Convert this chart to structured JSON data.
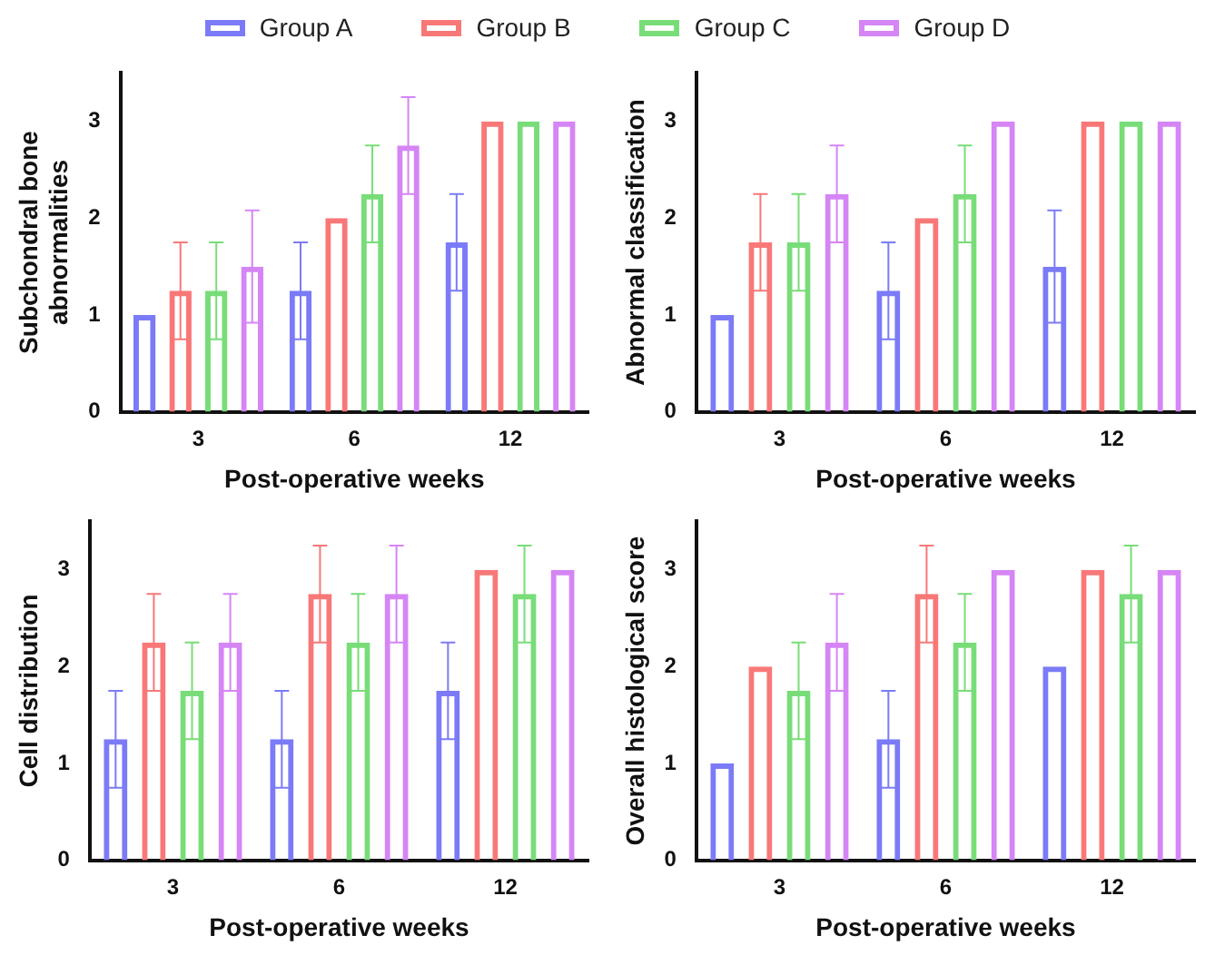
{
  "chart_data": [
    {
      "type": "bar",
      "ylabel": "Subchondral bone abnormalities",
      "xlabel": "Post-operative weeks",
      "categories": [
        "3",
        "6",
        "12"
      ],
      "ylim": [
        0,
        3.5
      ],
      "yticks": [
        0,
        1,
        2,
        3
      ],
      "grid": false,
      "legend": "top",
      "series": [
        {
          "name": "Group A",
          "color": "#7b7bf7",
          "values": [
            1,
            1.25,
            1.75
          ],
          "errors": [
            null,
            0.5,
            0.5
          ]
        },
        {
          "name": "Group B",
          "color": "#f87878",
          "values": [
            1.25,
            2,
            3
          ],
          "errors": [
            0.5,
            null,
            null
          ]
        },
        {
          "name": "Group C",
          "color": "#78dd78",
          "values": [
            1.25,
            2.25,
            3
          ],
          "errors": [
            0.5,
            0.5,
            null
          ]
        },
        {
          "name": "Group D",
          "color": "#d585f5",
          "values": [
            1.5,
            2.75,
            3
          ],
          "errors": [
            0.58,
            0.5,
            null
          ]
        }
      ]
    },
    {
      "type": "bar",
      "ylabel": "Abnormal classification",
      "xlabel": "Post-operative weeks",
      "categories": [
        "3",
        "6",
        "12"
      ],
      "ylim": [
        0,
        3.5
      ],
      "yticks": [
        0,
        1,
        2,
        3
      ],
      "grid": false,
      "series": [
        {
          "color": "#7b7bf7",
          "values": [
            1,
            1.25,
            1.5
          ],
          "errors": [
            null,
            0.5,
            0.58
          ]
        },
        {
          "color": "#f87878",
          "values": [
            1.75,
            2,
            3
          ],
          "errors": [
            0.5,
            null,
            null
          ]
        },
        {
          "color": "#78dd78",
          "values": [
            1.75,
            2.25,
            3
          ],
          "errors": [
            0.5,
            0.5,
            null
          ]
        },
        {
          "color": "#d585f5",
          "values": [
            2.25,
            3,
            3
          ],
          "errors": [
            0.5,
            null,
            null
          ]
        }
      ]
    },
    {
      "type": "bar",
      "ylabel": "Cell distribution",
      "xlabel": "Post-operative weeks",
      "categories": [
        "3",
        "6",
        "12"
      ],
      "ylim": [
        0,
        3.5
      ],
      "yticks": [
        0,
        1,
        2,
        3
      ],
      "grid": false,
      "series": [
        {
          "color": "#7b7bf7",
          "values": [
            1.25,
            1.25,
            1.75
          ],
          "errors": [
            0.5,
            0.5,
            0.5
          ]
        },
        {
          "color": "#f87878",
          "values": [
            2.25,
            2.75,
            3
          ],
          "errors": [
            0.5,
            0.5,
            null
          ]
        },
        {
          "color": "#78dd78",
          "values": [
            1.75,
            2.25,
            2.75
          ],
          "errors": [
            0.5,
            0.5,
            0.5
          ]
        },
        {
          "color": "#d585f5",
          "values": [
            2.25,
            2.75,
            3
          ],
          "errors": [
            0.5,
            0.5,
            null
          ]
        }
      ]
    },
    {
      "type": "bar",
      "ylabel": "Overall histological score",
      "xlabel": "Post-operative weeks",
      "categories": [
        "3",
        "6",
        "12"
      ],
      "ylim": [
        0,
        3.5
      ],
      "yticks": [
        0,
        1,
        2,
        3
      ],
      "grid": false,
      "series": [
        {
          "color": "#7b7bf7",
          "values": [
            1,
            1.25,
            2
          ],
          "errors": [
            null,
            0.5,
            null
          ]
        },
        {
          "color": "#f87878",
          "values": [
            2,
            2.75,
            3
          ],
          "errors": [
            null,
            0.5,
            null
          ]
        },
        {
          "color": "#78dd78",
          "values": [
            1.75,
            2.25,
            2.75
          ],
          "errors": [
            0.5,
            0.5,
            0.5
          ]
        },
        {
          "color": "#d585f5",
          "values": [
            2.25,
            3,
            3
          ],
          "errors": [
            0.5,
            null,
            null
          ]
        }
      ]
    }
  ]
}
